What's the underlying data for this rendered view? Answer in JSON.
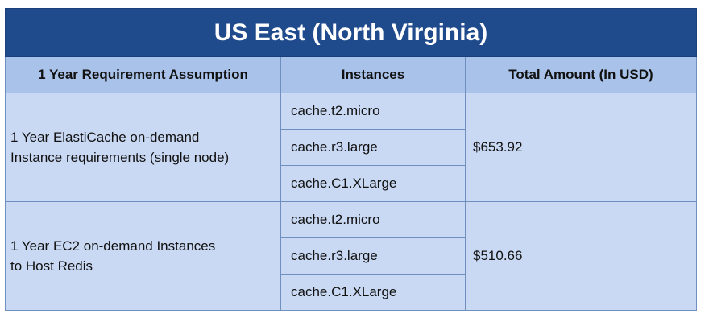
{
  "title": "US East (North Virginia)",
  "headers": {
    "assumption": "1 Year Requirement Assumption",
    "instances": "Instances",
    "total": "Total Amount (In USD)"
  },
  "rows": [
    {
      "assumption_line1": "1 Year ElastiCache on-demand",
      "assumption_line2": "Instance requirements (single node)",
      "instances": [
        "cache.t2.micro",
        "cache.r3.large",
        "cache.C1.XLarge"
      ],
      "total": "$653.92"
    },
    {
      "assumption_line1": "1 Year EC2 on-demand Instances",
      "assumption_line2": "to Host Redis",
      "instances": [
        "cache.t2.micro",
        "cache.r3.large",
        "cache.C1.XLarge"
      ],
      "total": "$510.66"
    }
  ],
  "colors": {
    "title_bg": "#1f4a8c",
    "header_bg": "#a8c2ea",
    "body_bg": "#c9d9f3",
    "border": "#6f8fbf"
  }
}
